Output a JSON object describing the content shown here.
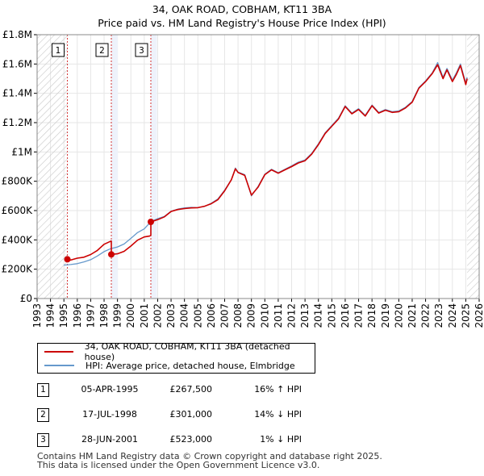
{
  "title_line1": "34, OAK ROAD, COBHAM, KT11 3BA",
  "title_line2": "Price paid vs. HM Land Registry's House Price Index (HPI)",
  "chart_data": {
    "type": "line",
    "ylim": [
      0,
      1800000
    ],
    "xlim": [
      1993,
      2026
    ],
    "y_ticks": [
      {
        "value": 0,
        "label": "£0"
      },
      {
        "value": 200000,
        "label": "£200K"
      },
      {
        "value": 400000,
        "label": "£400K"
      },
      {
        "value": 600000,
        "label": "£600K"
      },
      {
        "value": 800000,
        "label": "£800K"
      },
      {
        "value": 1000000,
        "label": "£1M"
      },
      {
        "value": 1200000,
        "label": "£1.2M"
      },
      {
        "value": 1400000,
        "label": "£1.4M"
      },
      {
        "value": 1600000,
        "label": "£1.6M"
      },
      {
        "value": 1800000,
        "label": "£1.8M"
      }
    ],
    "x_ticks": [
      "1993",
      "1994",
      "1995",
      "1996",
      "1997",
      "1998",
      "1999",
      "2000",
      "2001",
      "2002",
      "2003",
      "2004",
      "2005",
      "2006",
      "2007",
      "2008",
      "2009",
      "2010",
      "2011",
      "2012",
      "2013",
      "2014",
      "2015",
      "2016",
      "2017",
      "2018",
      "2019",
      "2020",
      "2021",
      "2022",
      "2023",
      "2024",
      "2025",
      "2026"
    ],
    "hatched_before": 1995.26,
    "hatched_after": 2025.1,
    "colors": {
      "property": "#cc0000",
      "hpi": "#6699cc",
      "grid": "#e6e6e6",
      "band": "#eef2fb",
      "marker": "#cc0000",
      "vline": "#cc0000"
    },
    "series": [
      {
        "name": "34, OAK ROAD, COBHAM, KT11 3BA (detached house)",
        "key": "property",
        "points": [
          [
            1995.26,
            267500
          ],
          [
            1995.5,
            262000
          ],
          [
            1996.0,
            275000
          ],
          [
            1996.5,
            282000
          ],
          [
            1997.0,
            300000
          ],
          [
            1997.5,
            328000
          ],
          [
            1998.0,
            370000
          ],
          [
            1998.4,
            387000
          ],
          [
            1998.54,
            392000
          ],
          [
            1998.54,
            301000
          ],
          [
            1999.0,
            305000
          ],
          [
            1999.5,
            322000
          ],
          [
            2000.0,
            358000
          ],
          [
            2000.5,
            398000
          ],
          [
            2001.0,
            420000
          ],
          [
            2001.4,
            426000
          ],
          [
            2001.49,
            432000
          ],
          [
            2001.49,
            523000
          ],
          [
            2002.0,
            538000
          ],
          [
            2002.5,
            557000
          ],
          [
            2003.0,
            594000
          ],
          [
            2003.5,
            607000
          ],
          [
            2004.0,
            614000
          ],
          [
            2004.5,
            618000
          ],
          [
            2005.0,
            620000
          ],
          [
            2005.5,
            630000
          ],
          [
            2006.0,
            647000
          ],
          [
            2006.5,
            675000
          ],
          [
            2007.0,
            735000
          ],
          [
            2007.5,
            810000
          ],
          [
            2007.8,
            885000
          ],
          [
            2008.0,
            860000
          ],
          [
            2008.5,
            840000
          ],
          [
            2009.0,
            705000
          ],
          [
            2009.5,
            760000
          ],
          [
            2010.0,
            845000
          ],
          [
            2010.5,
            878000
          ],
          [
            2011.0,
            855000
          ],
          [
            2011.5,
            878000
          ],
          [
            2012.0,
            900000
          ],
          [
            2012.5,
            925000
          ],
          [
            2013.0,
            940000
          ],
          [
            2013.5,
            985000
          ],
          [
            2014.0,
            1050000
          ],
          [
            2014.5,
            1125000
          ],
          [
            2015.0,
            1175000
          ],
          [
            2015.5,
            1225000
          ],
          [
            2016.0,
            1310000
          ],
          [
            2016.5,
            1260000
          ],
          [
            2017.0,
            1290000
          ],
          [
            2017.5,
            1245000
          ],
          [
            2018.0,
            1315000
          ],
          [
            2018.5,
            1265000
          ],
          [
            2019.0,
            1285000
          ],
          [
            2019.5,
            1270000
          ],
          [
            2020.0,
            1275000
          ],
          [
            2020.5,
            1300000
          ],
          [
            2021.0,
            1340000
          ],
          [
            2021.5,
            1435000
          ],
          [
            2022.0,
            1480000
          ],
          [
            2022.5,
            1535000
          ],
          [
            2022.9,
            1595000
          ],
          [
            2023.3,
            1500000
          ],
          [
            2023.6,
            1560000
          ],
          [
            2024.0,
            1480000
          ],
          [
            2024.3,
            1530000
          ],
          [
            2024.6,
            1590000
          ],
          [
            2025.0,
            1460000
          ],
          [
            2025.1,
            1500000
          ]
        ]
      },
      {
        "name": "HPI: Average price, detached house, Elmbridge",
        "key": "hpi",
        "points": [
          [
            1995.0,
            228000
          ],
          [
            1995.5,
            232000
          ],
          [
            1996.0,
            238000
          ],
          [
            1996.5,
            250000
          ],
          [
            1997.0,
            265000
          ],
          [
            1997.5,
            290000
          ],
          [
            1998.0,
            320000
          ],
          [
            1998.5,
            340000
          ],
          [
            1999.0,
            352000
          ],
          [
            1999.5,
            372000
          ],
          [
            2000.0,
            410000
          ],
          [
            2000.5,
            450000
          ],
          [
            2001.0,
            475000
          ],
          [
            2001.5,
            525000
          ],
          [
            2002.0,
            545000
          ],
          [
            2002.5,
            560000
          ],
          [
            2003.0,
            596000
          ],
          [
            2003.5,
            610000
          ],
          [
            2004.0,
            618000
          ],
          [
            2004.5,
            622000
          ],
          [
            2005.0,
            620000
          ],
          [
            2005.5,
            628000
          ],
          [
            2006.0,
            650000
          ],
          [
            2006.5,
            680000
          ],
          [
            2007.0,
            740000
          ],
          [
            2007.5,
            810000
          ],
          [
            2007.8,
            890000
          ],
          [
            2008.0,
            862000
          ],
          [
            2008.5,
            845000
          ],
          [
            2009.0,
            700000
          ],
          [
            2009.5,
            765000
          ],
          [
            2010.0,
            848000
          ],
          [
            2010.5,
            882000
          ],
          [
            2011.0,
            858000
          ],
          [
            2011.5,
            882000
          ],
          [
            2012.0,
            905000
          ],
          [
            2012.5,
            930000
          ],
          [
            2013.0,
            945000
          ],
          [
            2013.5,
            990000
          ],
          [
            2014.0,
            1055000
          ],
          [
            2014.5,
            1130000
          ],
          [
            2015.0,
            1180000
          ],
          [
            2015.5,
            1230000
          ],
          [
            2016.0,
            1315000
          ],
          [
            2016.5,
            1265000
          ],
          [
            2017.0,
            1295000
          ],
          [
            2017.5,
            1250000
          ],
          [
            2018.0,
            1320000
          ],
          [
            2018.5,
            1270000
          ],
          [
            2019.0,
            1290000
          ],
          [
            2019.5,
            1275000
          ],
          [
            2020.0,
            1280000
          ],
          [
            2020.5,
            1305000
          ],
          [
            2021.0,
            1345000
          ],
          [
            2021.5,
            1440000
          ],
          [
            2022.0,
            1485000
          ],
          [
            2022.5,
            1540000
          ],
          [
            2022.9,
            1610000
          ],
          [
            2023.3,
            1510000
          ],
          [
            2023.6,
            1570000
          ],
          [
            2024.0,
            1490000
          ],
          [
            2024.3,
            1540000
          ],
          [
            2024.6,
            1600000
          ],
          [
            2025.0,
            1470000
          ],
          [
            2025.1,
            1510000
          ]
        ]
      }
    ],
    "sales": [
      {
        "label": "1",
        "x": 1995.26,
        "price": 267500
      },
      {
        "label": "2",
        "x": 1998.54,
        "price": 301000
      },
      {
        "label": "3",
        "x": 2001.49,
        "price": 523000
      }
    ]
  },
  "legend": {
    "property_label": "34, OAK ROAD, COBHAM, KT11 3BA (detached house)",
    "hpi_label": "HPI: Average price, detached house, Elmbridge"
  },
  "sales_table": [
    {
      "num": "1",
      "date": "05-APR-1995",
      "price": "£267,500",
      "hpi": "16% ↑ HPI"
    },
    {
      "num": "2",
      "date": "17-JUL-1998",
      "price": "£301,000",
      "hpi": "14% ↓ HPI"
    },
    {
      "num": "3",
      "date": "28-JUN-2001",
      "price": "£523,000",
      "hpi": "1% ↓ HPI"
    }
  ],
  "footer_line1": "Contains HM Land Registry data © Crown copyright and database right 2025.",
  "footer_line2": "This data is licensed under the Open Government Licence v3.0."
}
